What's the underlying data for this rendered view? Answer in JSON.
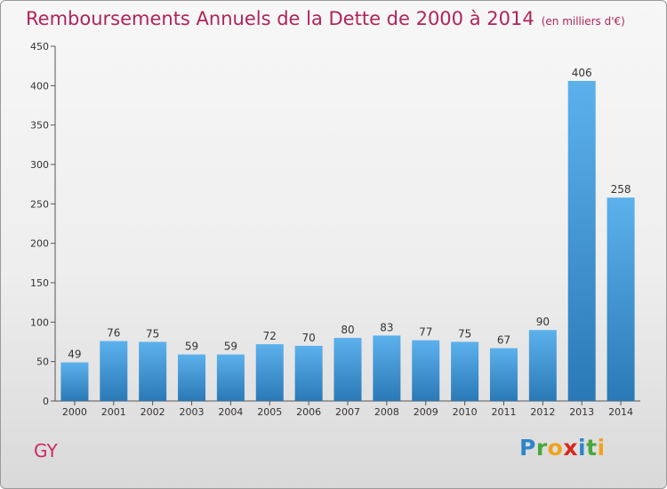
{
  "title": "Remboursements Annuels de la Dette de 2000 à 2014",
  "unit": "(en milliers d'€)",
  "commune": "GY",
  "logo": {
    "text": "Proxiti",
    "letters": [
      {
        "ch": "P",
        "color": "#2e86c9"
      },
      {
        "ch": "r",
        "color": "#49a83c"
      },
      {
        "ch": "o",
        "color": "#f0a21e"
      },
      {
        "ch": "x",
        "color": "#d8281b"
      },
      {
        "ch": "i",
        "color": "#2e86c9"
      },
      {
        "ch": "t",
        "color": "#49a83c"
      },
      {
        "ch": "i",
        "color": "#f0a21e"
      }
    ]
  },
  "colors": {
    "title": "#b0245a",
    "bar_top": "#5cb1ec",
    "bar_bottom": "#2a79b6",
    "axis": "#555555"
  },
  "chart_data": {
    "type": "bar",
    "categories": [
      "2000",
      "2001",
      "2002",
      "2003",
      "2004",
      "2005",
      "2006",
      "2007",
      "2008",
      "2009",
      "2010",
      "2011",
      "2012",
      "2013",
      "2014"
    ],
    "values": [
      49,
      76,
      75,
      59,
      59,
      72,
      70,
      80,
      83,
      77,
      75,
      67,
      90,
      406,
      258
    ],
    "ylim": [
      0,
      450
    ],
    "yticks": [
      0,
      50,
      100,
      150,
      200,
      250,
      300,
      350,
      400,
      450
    ],
    "grid": false,
    "data_labels": true
  }
}
